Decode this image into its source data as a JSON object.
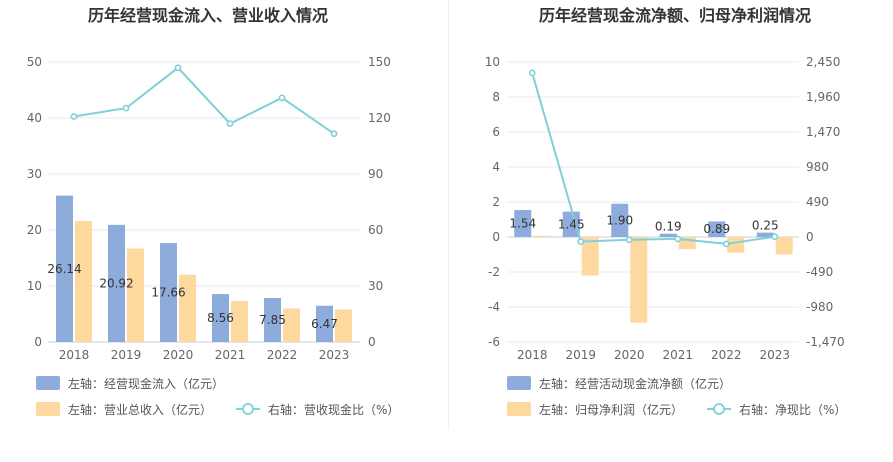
{
  "chart_data": [
    {
      "type": "bar",
      "title": "历年经营现金流入、营业收入情况",
      "categories": [
        "2018",
        "2019",
        "2020",
        "2021",
        "2022",
        "2023"
      ],
      "left_axis": {
        "ylim": [
          0,
          50
        ],
        "ticks": [
          "0",
          "10",
          "20",
          "30",
          "40",
          "50"
        ]
      },
      "right_axis": {
        "ylim": [
          0,
          150
        ],
        "ticks": [
          "0",
          "30",
          "60",
          "90",
          "120",
          "150"
        ]
      },
      "grid": true,
      "legend_position": "bottom",
      "series": [
        {
          "name": "左轴：经营现金流入（亿元）",
          "type": "bar",
          "axis": "left",
          "color": "#8eacdb",
          "values": [
            26.14,
            20.92,
            17.66,
            8.56,
            7.85,
            6.47
          ],
          "labels": [
            "26.14",
            "20.92",
            "17.66",
            "8.56",
            "7.85",
            "6.47"
          ]
        },
        {
          "name": "左轴：营业总收入（亿元）",
          "type": "bar",
          "axis": "left",
          "color": "#fdd9a0",
          "values": [
            21.6,
            16.7,
            12.0,
            7.3,
            6.0,
            5.8
          ]
        },
        {
          "name": "右轴：营收现金比（%）",
          "type": "line",
          "axis": "right",
          "color": "#7fd0d8",
          "values": [
            120.8,
            125.3,
            146.9,
            117.0,
            130.8,
            111.6
          ]
        }
      ]
    },
    {
      "type": "bar",
      "title": "历年经营现金流净额、归母净利润情况",
      "categories": [
        "2018",
        "2019",
        "2020",
        "2021",
        "2022",
        "2023"
      ],
      "left_axis": {
        "ylim": [
          -6,
          10
        ],
        "ticks": [
          "-6",
          "-4",
          "-2",
          "0",
          "2",
          "4",
          "6",
          "8",
          "10"
        ]
      },
      "right_axis": {
        "ylim": [
          -1470,
          2450
        ],
        "ticks": [
          "-1,470",
          "-980",
          "-490",
          "0",
          "490",
          "980",
          "1,470",
          "1,960",
          "2,450"
        ]
      },
      "grid": true,
      "legend_position": "bottom",
      "series": [
        {
          "name": "左轴：经营活动现金流净额（亿元）",
          "type": "bar",
          "axis": "left",
          "color": "#8eacdb",
          "values": [
            1.54,
            1.45,
            1.9,
            0.19,
            0.89,
            0.25
          ],
          "labels": [
            "1.54",
            "1.45",
            "1.90",
            "0.19",
            "0.89",
            "0.25"
          ]
        },
        {
          "name": "左轴：归母净利润（亿元）",
          "type": "bar",
          "axis": "left",
          "color": "#fdd9a0",
          "values": [
            0.07,
            -2.2,
            -4.9,
            -0.7,
            -0.9,
            -1.0
          ]
        },
        {
          "name": "右轴：净现比（%）",
          "type": "line",
          "axis": "right",
          "color": "#7fd0d8",
          "values": [
            2297,
            -65,
            -39,
            -27,
            -97,
            5
          ]
        }
      ]
    }
  ]
}
